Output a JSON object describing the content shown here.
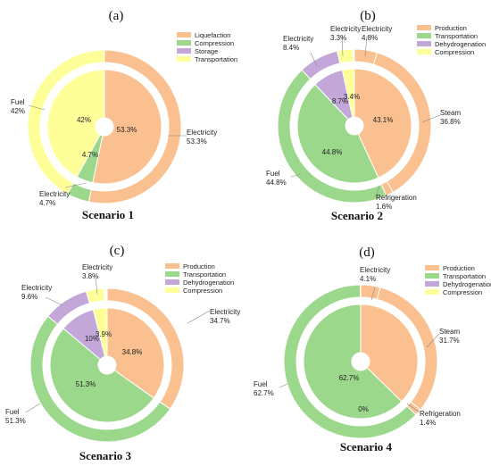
{
  "chart_data": [
    {
      "type": "pie",
      "panel_label": "(a)",
      "title": "Scenario 1",
      "legend": [
        "Liquefaction",
        "Compression",
        "Storage",
        "Transportation"
      ],
      "colors": [
        "#FAC090",
        "#9CD88C",
        "#C3A7D9",
        "#FFFF99"
      ],
      "outer_ring": [
        {
          "label": "Electricity",
          "value": 53.3,
          "display": "53.3%",
          "color": "#FAC090"
        },
        {
          "label": "Electricity",
          "value": 4.7,
          "display": "4.7%",
          "color": "#9CD88C"
        },
        {
          "label": "Fuel",
          "value": 42,
          "display": "42%",
          "color": "#FFFF99"
        }
      ],
      "inner_ring": [
        {
          "value": 53.3,
          "display": "53.3%",
          "color": "#FAC090"
        },
        {
          "value": 4.7,
          "display": "4.7%",
          "color": "#9CD88C"
        },
        {
          "value": 42,
          "display": "42%",
          "color": "#FFFF99"
        }
      ]
    },
    {
      "type": "pie",
      "panel_label": "(b)",
      "title": "Scenario 2",
      "legend": [
        "Production",
        "Transportation",
        "Dehydrogenation",
        "Compression"
      ],
      "colors": [
        "#FAC090",
        "#9CD88C",
        "#C3A7D9",
        "#FFFF99"
      ],
      "outer_ring": [
        {
          "label": "Electricity",
          "value": 4.8,
          "display": "4.8%",
          "color": "#FAC090"
        },
        {
          "label": "Steam",
          "value": 36.8,
          "display": "36.8%",
          "color": "#FAC090"
        },
        {
          "label": "Refrigeration",
          "value": 1.6,
          "display": "1.6%",
          "color": "#FAC090"
        },
        {
          "label": "Fuel",
          "value": 44.8,
          "display": "44.8%",
          "color": "#9CD88C"
        },
        {
          "label": "Electricity",
          "value": 8.4,
          "display": "8.4%",
          "color": "#C3A7D9"
        },
        {
          "label": "Electricity",
          "value": 3.3,
          "display": "3.3%",
          "color": "#FFFF99"
        }
      ],
      "inner_ring": [
        {
          "value": 43.1,
          "display": "43.1%",
          "color": "#FAC090"
        },
        {
          "value": 44.8,
          "display": "44.8%",
          "color": "#9CD88C"
        },
        {
          "value": 8.7,
          "display": "8.7%",
          "color": "#C3A7D9"
        },
        {
          "value": 3.4,
          "display": "3.4%",
          "color": "#FFFF99"
        }
      ]
    },
    {
      "type": "pie",
      "panel_label": "(c)",
      "title": "Scenario 3",
      "legend": [
        "Production",
        "Transportation",
        "Dehydrogenation",
        "Compression"
      ],
      "colors": [
        "#FAC090",
        "#9CD88C",
        "#C3A7D9",
        "#FFFF99"
      ],
      "outer_ring": [
        {
          "label": "Electricity",
          "value": 34.7,
          "display": "34.7%",
          "color": "#FAC090"
        },
        {
          "label": "Fuel",
          "value": 51.3,
          "display": "51.3%",
          "color": "#9CD88C"
        },
        {
          "label": "Electricity",
          "value": 9.6,
          "display": "9.6%",
          "color": "#C3A7D9"
        },
        {
          "label": "Electricity",
          "value": 3.8,
          "display": "3.8%",
          "color": "#FFFF99"
        }
      ],
      "inner_ring": [
        {
          "value": 34.8,
          "display": "34.8%",
          "color": "#FAC090"
        },
        {
          "value": 51.3,
          "display": "51.3%",
          "color": "#9CD88C"
        },
        {
          "value": 10,
          "display": "10%",
          "color": "#C3A7D9"
        },
        {
          "value": 3.9,
          "display": "3.9%",
          "color": "#FFFF99"
        }
      ]
    },
    {
      "type": "pie",
      "panel_label": "(d)",
      "title": "Scenario 4",
      "legend": [
        "Production",
        "Transportation",
        "Dehydrogenation",
        "Compression"
      ],
      "colors": [
        "#FAC090",
        "#9CD88C",
        "#C3A7D9",
        "#FFFF99"
      ],
      "outer_ring": [
        {
          "label": "Electricity",
          "value": 4.1,
          "display": "4.1%",
          "color": "#FAC090"
        },
        {
          "label": "Steam",
          "value": 31.7,
          "display": "31.7%",
          "color": "#FAC090"
        },
        {
          "label": "Refrigeration",
          "value": 1.4,
          "display": "1.4%",
          "color": "#FAC090"
        },
        {
          "label": "Fuel",
          "value": 62.7,
          "display": "62.7%",
          "color": "#9CD88C"
        }
      ],
      "inner_ring": [
        {
          "value": 37.3,
          "display": "",
          "color": "#FAC090"
        },
        {
          "value": 62.7,
          "display": "62.7%",
          "color": "#9CD88C"
        },
        {
          "value": 0.0,
          "display": "0%",
          "color": "#C3A7D9"
        }
      ]
    }
  ]
}
